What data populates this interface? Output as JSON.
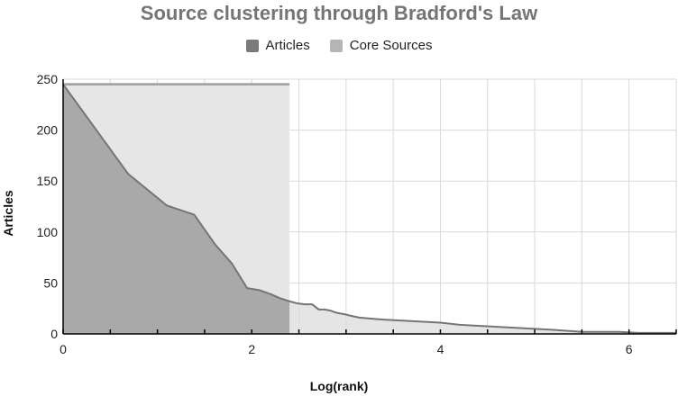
{
  "colors": {
    "articles_fill": "#a9a9a9",
    "articles_line": "#757575",
    "core_fill": "#e6e6e6",
    "core_top_line": "#9e9e9e",
    "tail_fill": "#dcdcdc",
    "grid": "#d9d9d9",
    "axis": "#000000",
    "legend_articles": "#7b7b7b",
    "legend_core": "#b5b5b5"
  },
  "chart_data": {
    "type": "area",
    "title": "Source clustering through Bradford's Law",
    "xlabel": "Log(rank)",
    "ylabel": "Articles",
    "xlim": [
      0,
      6.5
    ],
    "ylim": [
      0,
      250
    ],
    "x_ticks": [
      0,
      2,
      4,
      6
    ],
    "y_ticks": [
      0,
      50,
      100,
      150,
      200,
      250
    ],
    "grid": true,
    "legend_position": "top",
    "series": [
      {
        "name": "Articles",
        "x": [
          0,
          0.69,
          1.1,
          1.39,
          1.61,
          1.79,
          1.95,
          2.08,
          2.2,
          2.3,
          2.4,
          2.48,
          2.56,
          2.64,
          2.71,
          2.77,
          2.83,
          2.89,
          2.94,
          3.0,
          3.04,
          3.09,
          3.14,
          3.26,
          3.4,
          3.6,
          3.8,
          4.0,
          4.2,
          4.4,
          4.6,
          4.8,
          5.0,
          5.2,
          5.35,
          5.5,
          5.7,
          5.9,
          6.1,
          6.3,
          6.5
        ],
        "y": [
          245,
          157,
          126,
          117,
          88,
          69,
          45,
          43,
          39,
          35,
          32,
          30,
          29,
          29,
          24,
          24,
          23,
          21,
          20,
          19,
          18,
          17,
          16,
          15,
          14,
          13,
          12,
          11,
          9,
          8,
          7,
          6,
          5,
          4,
          3,
          2,
          2,
          2,
          1,
          1,
          1
        ]
      },
      {
        "name": "Core Sources",
        "x_range": [
          0,
          2.4
        ],
        "y": 245
      }
    ]
  }
}
